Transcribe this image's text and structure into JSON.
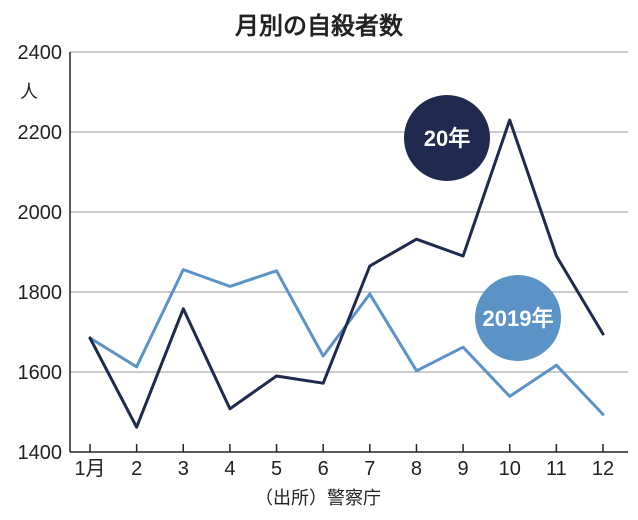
{
  "chart_data": {
    "type": "line",
    "title": "月別の自殺者数",
    "ylabel": "人",
    "source": "（出所）警察庁",
    "ylim": [
      1400,
      2400
    ],
    "yticks": [
      1400,
      1600,
      1800,
      2000,
      2200,
      2400
    ],
    "categories": [
      "1月",
      "2",
      "3",
      "4",
      "5",
      "6",
      "7",
      "8",
      "9",
      "10",
      "11",
      "12"
    ],
    "series": [
      {
        "name": "20年",
        "color": "#1f2a4e",
        "values": [
          1685,
          1462,
          1758,
          1508,
          1590,
          1572,
          1865,
          1932,
          1890,
          2230,
          1890,
          1695
        ]
      },
      {
        "name": "2019年",
        "color": "#5b93c7",
        "values": [
          1685,
          1613,
          1856,
          1814,
          1853,
          1640,
          1795,
          1603,
          1662,
          1539,
          1617,
          1494
        ]
      }
    ],
    "grid": true,
    "legend": "inline-badges"
  }
}
